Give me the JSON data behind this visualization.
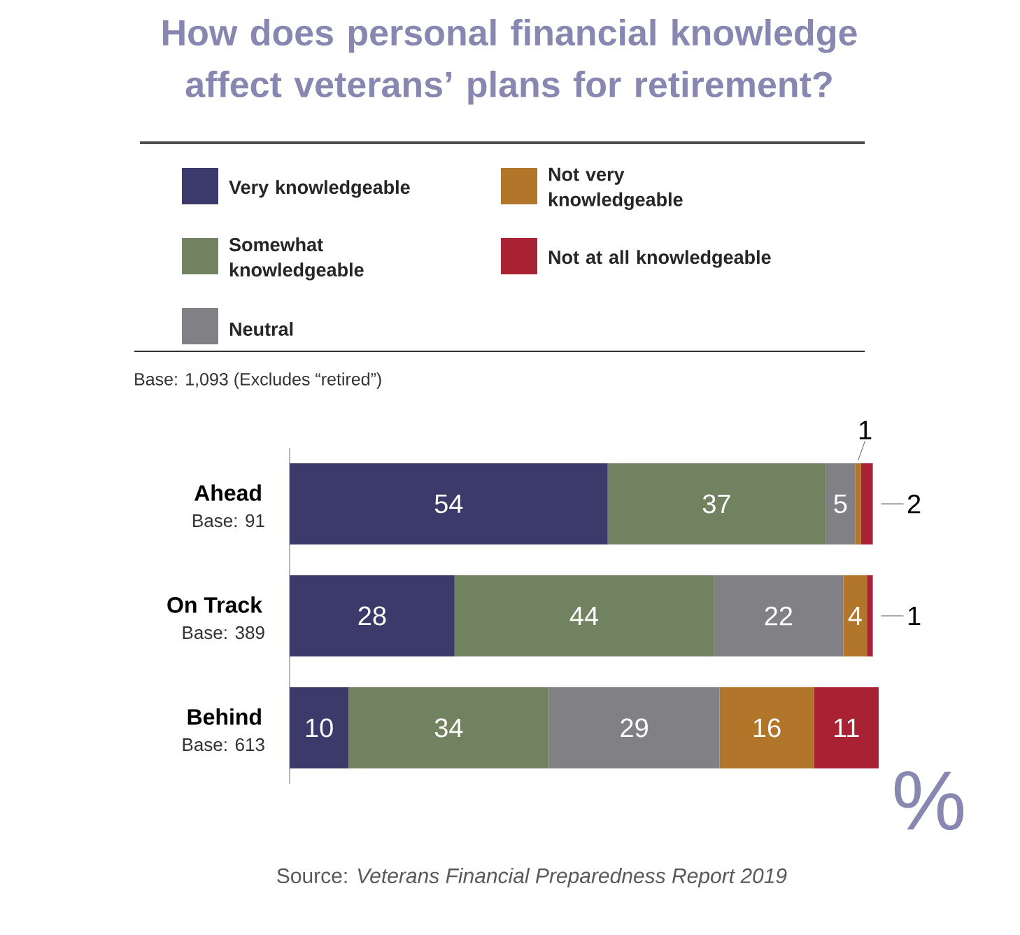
{
  "chart_data": {
    "type": "bar",
    "orientation": "horizontal",
    "stacked": true,
    "title": "How does personal financial knowledge affect veterans’ plans for retirement?",
    "categories": [
      "Ahead",
      "On Track",
      "Behind"
    ],
    "series": [
      {
        "name": "Very knowledgeable",
        "color": "#3b3a6b",
        "values": [
          54,
          28,
          10
        ]
      },
      {
        "name": "Somewhat knowledgeable",
        "color": "#70825f",
        "values": [
          37,
          44,
          34
        ]
      },
      {
        "name": "Neutral",
        "color": "#808085",
        "values": [
          5,
          22,
          29
        ]
      },
      {
        "name": "Not very knowledgeable",
        "color": "#b2762b",
        "values": [
          1,
          4,
          16
        ]
      },
      {
        "name": "Not at all knowledgeable",
        "color": "#a82233",
        "values": [
          2,
          1,
          11
        ]
      }
    ],
    "data_labels": true,
    "legend": "top",
    "annotations": [
      "Base: 91",
      "Base: 389",
      "Base: 613",
      "Base: 1,093 (Excludes “retired”)",
      "%",
      "Source: *Veterans Financial Preparedness Report 2019*"
    ]
  }
}
